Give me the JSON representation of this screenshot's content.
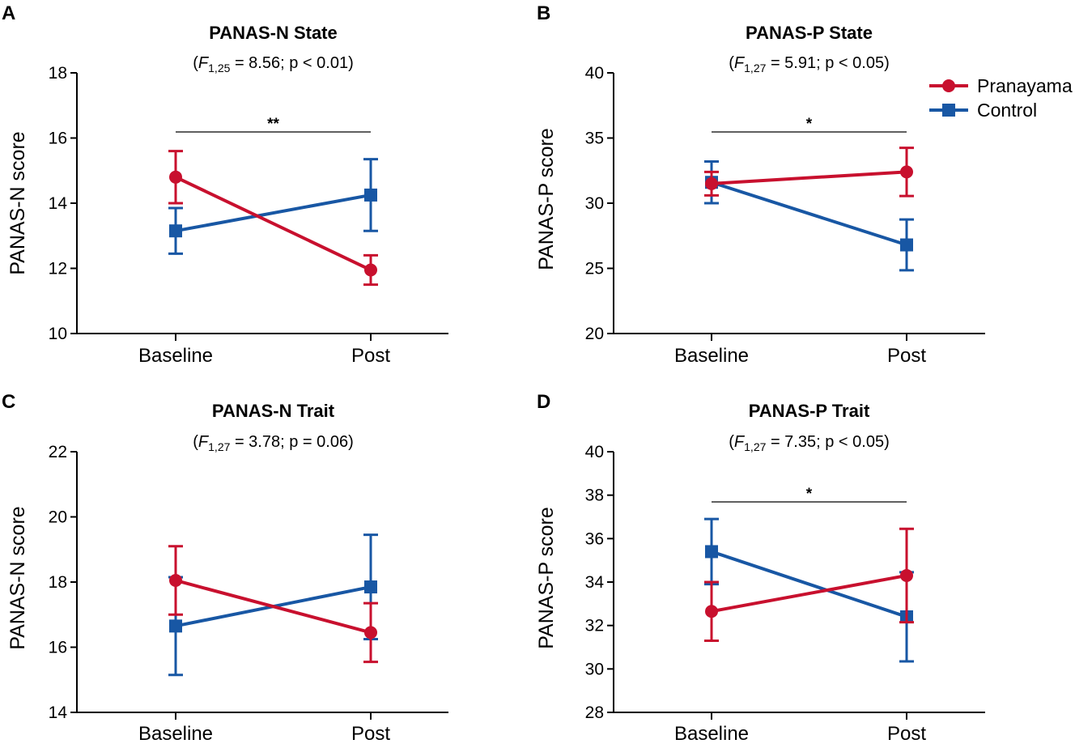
{
  "colors": {
    "pranayama": "#c8102e",
    "control": "#1857a4",
    "axis": "#000000"
  },
  "legend": [
    {
      "name": "Pranayama",
      "marker": "circle",
      "color": "#c8102e"
    },
    {
      "name": "Control",
      "marker": "square",
      "color": "#1857a4"
    }
  ],
  "chart_data": [
    {
      "type": "line",
      "panel": "A",
      "title": "PANAS-N State",
      "stat": {
        "open": "(",
        "letter": "F",
        "df": "1,25",
        "rest": " = 8.56; p < 0.01)"
      },
      "ylabel": "PANAS-N score",
      "categories": [
        "Baseline",
        "Post"
      ],
      "ylim": [
        10,
        18
      ],
      "yticks": [
        "10",
        "12",
        "14",
        "16",
        "18"
      ],
      "significance": "**",
      "series": [
        {
          "name": "Pranayama",
          "values": [
            14.8,
            11.95
          ],
          "err": [
            0.8,
            0.45
          ]
        },
        {
          "name": "Control",
          "values": [
            13.15,
            14.25
          ],
          "err": [
            0.7,
            1.1
          ]
        }
      ]
    },
    {
      "type": "line",
      "panel": "B",
      "title": "PANAS-P State",
      "stat": {
        "open": "(",
        "letter": "F",
        "df": "1,27",
        "rest": " = 5.91; p < 0.05)"
      },
      "ylabel": "PANAS-P score",
      "categories": [
        "Baseline",
        "Post"
      ],
      "ylim": [
        20,
        40
      ],
      "yticks": [
        "20",
        "25",
        "30",
        "35",
        "40"
      ],
      "significance": "*",
      "series": [
        {
          "name": "Pranayama",
          "values": [
            31.5,
            32.4
          ],
          "err": [
            0.9,
            1.85
          ]
        },
        {
          "name": "Control",
          "values": [
            31.6,
            26.8
          ],
          "err": [
            1.6,
            1.95
          ]
        }
      ]
    },
    {
      "type": "line",
      "panel": "C",
      "title": "PANAS-N Trait",
      "stat": {
        "open": "(",
        "letter": "F",
        "df": "1,27",
        "rest": " = 3.78; p = 0.06)"
      },
      "ylabel": "PANAS-N score",
      "categories": [
        "Baseline",
        "Post"
      ],
      "ylim": [
        14,
        22
      ],
      "yticks": [
        "14",
        "16",
        "18",
        "20",
        "22"
      ],
      "significance": "",
      "series": [
        {
          "name": "Pranayama",
          "values": [
            18.05,
            16.45
          ],
          "err": [
            1.05,
            0.9
          ]
        },
        {
          "name": "Control",
          "values": [
            16.65,
            17.85
          ],
          "err": [
            1.5,
            1.6
          ]
        }
      ]
    },
    {
      "type": "line",
      "panel": "D",
      "title": "PANAS-P Trait",
      "stat": {
        "open": "(",
        "letter": "F",
        "df": "1,27",
        "rest": " = 7.35; p < 0.05)"
      },
      "ylabel": "PANAS-P score",
      "categories": [
        "Baseline",
        "Post"
      ],
      "ylim": [
        28,
        40
      ],
      "yticks": [
        "28",
        "30",
        "32",
        "34",
        "36",
        "38",
        "40"
      ],
      "significance": "*",
      "series": [
        {
          "name": "Pranayama",
          "values": [
            32.65,
            34.3
          ],
          "err": [
            1.35,
            2.15
          ]
        },
        {
          "name": "Control",
          "values": [
            35.4,
            32.4
          ],
          "err": [
            1.5,
            2.05
          ]
        }
      ]
    }
  ]
}
